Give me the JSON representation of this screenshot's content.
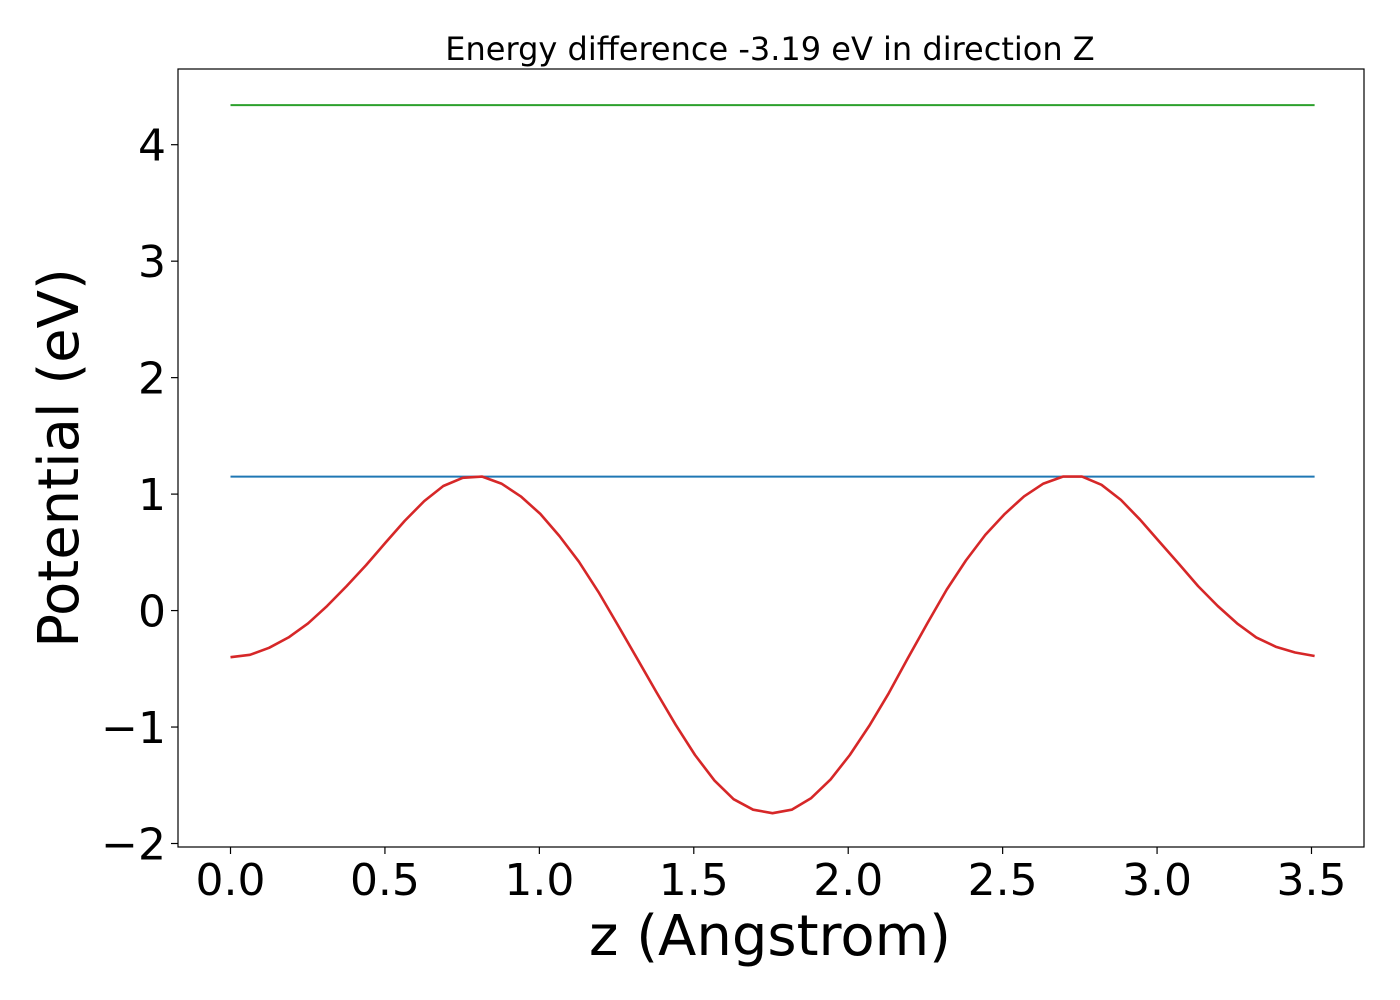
{
  "chart_data": {
    "type": "line",
    "title": "Energy difference -3.19 eV in direction Z",
    "xlabel": "z (Angstrom)",
    "ylabel": "Potential (eV)",
    "xlim": [
      -0.17,
      3.67
    ],
    "ylim": [
      -2.03,
      4.65
    ],
    "x_ticks": [
      {
        "value": 0.0,
        "label": "0.0"
      },
      {
        "value": 0.5,
        "label": "0.5"
      },
      {
        "value": 1.0,
        "label": "1.0"
      },
      {
        "value": 1.5,
        "label": "1.5"
      },
      {
        "value": 2.0,
        "label": "2.0"
      },
      {
        "value": 2.5,
        "label": "2.5"
      },
      {
        "value": 3.0,
        "label": "3.0"
      },
      {
        "value": 3.5,
        "label": "3.5"
      }
    ],
    "y_ticks": [
      {
        "value": -2,
        "label": "−2"
      },
      {
        "value": -1,
        "label": "−1"
      },
      {
        "value": 0,
        "label": "0"
      },
      {
        "value": 1,
        "label": "1"
      },
      {
        "value": 2,
        "label": "2"
      },
      {
        "value": 3,
        "label": "3"
      },
      {
        "value": 4,
        "label": "4"
      }
    ],
    "grid": false,
    "legend": "none",
    "series": [
      {
        "color": "#2ca02c",
        "style": "horizontal",
        "x": [
          0.0,
          3.51
        ],
        "y": [
          4.34,
          4.34
        ]
      },
      {
        "color": "#1f77b4",
        "style": "horizontal",
        "x": [
          0.0,
          3.51
        ],
        "y": [
          1.15,
          1.15
        ]
      },
      {
        "color": "#d62728",
        "style": "line",
        "x": [
          0.0,
          0.063,
          0.125,
          0.188,
          0.251,
          0.313,
          0.376,
          0.439,
          0.501,
          0.564,
          0.627,
          0.689,
          0.752,
          0.815,
          0.877,
          0.94,
          1.003,
          1.065,
          1.128,
          1.191,
          1.253,
          1.316,
          1.379,
          1.441,
          1.504,
          1.567,
          1.629,
          1.692,
          1.755,
          1.817,
          1.88,
          1.943,
          2.005,
          2.068,
          2.131,
          2.193,
          2.256,
          2.319,
          2.381,
          2.444,
          2.507,
          2.569,
          2.632,
          2.695,
          2.757,
          2.82,
          2.883,
          2.945,
          3.008,
          3.071,
          3.133,
          3.196,
          3.259,
          3.321,
          3.384,
          3.447,
          3.51
        ],
        "y": [
          -0.4,
          -0.38,
          -0.32,
          -0.23,
          -0.11,
          0.04,
          0.21,
          0.39,
          0.58,
          0.77,
          0.94,
          1.07,
          1.14,
          1.15,
          1.09,
          0.98,
          0.83,
          0.64,
          0.42,
          0.16,
          -0.12,
          -0.41,
          -0.7,
          -0.98,
          -1.24,
          -1.46,
          -1.62,
          -1.71,
          -1.74,
          -1.71,
          -1.61,
          -1.45,
          -1.24,
          -0.99,
          -0.71,
          -0.41,
          -0.11,
          0.18,
          0.43,
          0.65,
          0.83,
          0.98,
          1.09,
          1.15,
          1.15,
          1.08,
          0.95,
          0.78,
          0.59,
          0.4,
          0.21,
          0.04,
          -0.11,
          -0.23,
          -0.31,
          -0.36,
          -0.39
        ]
      }
    ]
  }
}
